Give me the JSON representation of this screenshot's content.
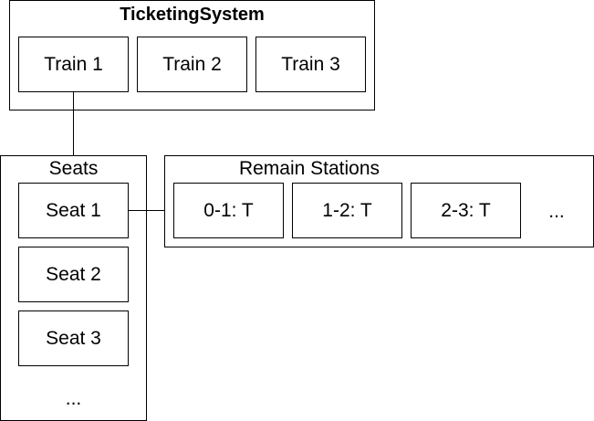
{
  "ticketing_system": {
    "title": "TicketingSystem",
    "trains": [
      "Train 1",
      "Train 2",
      "Train 3"
    ]
  },
  "seats": {
    "title": "Seats",
    "items": [
      "Seat 1",
      "Seat 2",
      "Seat 3"
    ],
    "more": "..."
  },
  "remain_stations": {
    "title": "Remain Stations",
    "items": [
      "0-1: T",
      "1-2: T",
      "2-3: T"
    ],
    "more": "..."
  }
}
